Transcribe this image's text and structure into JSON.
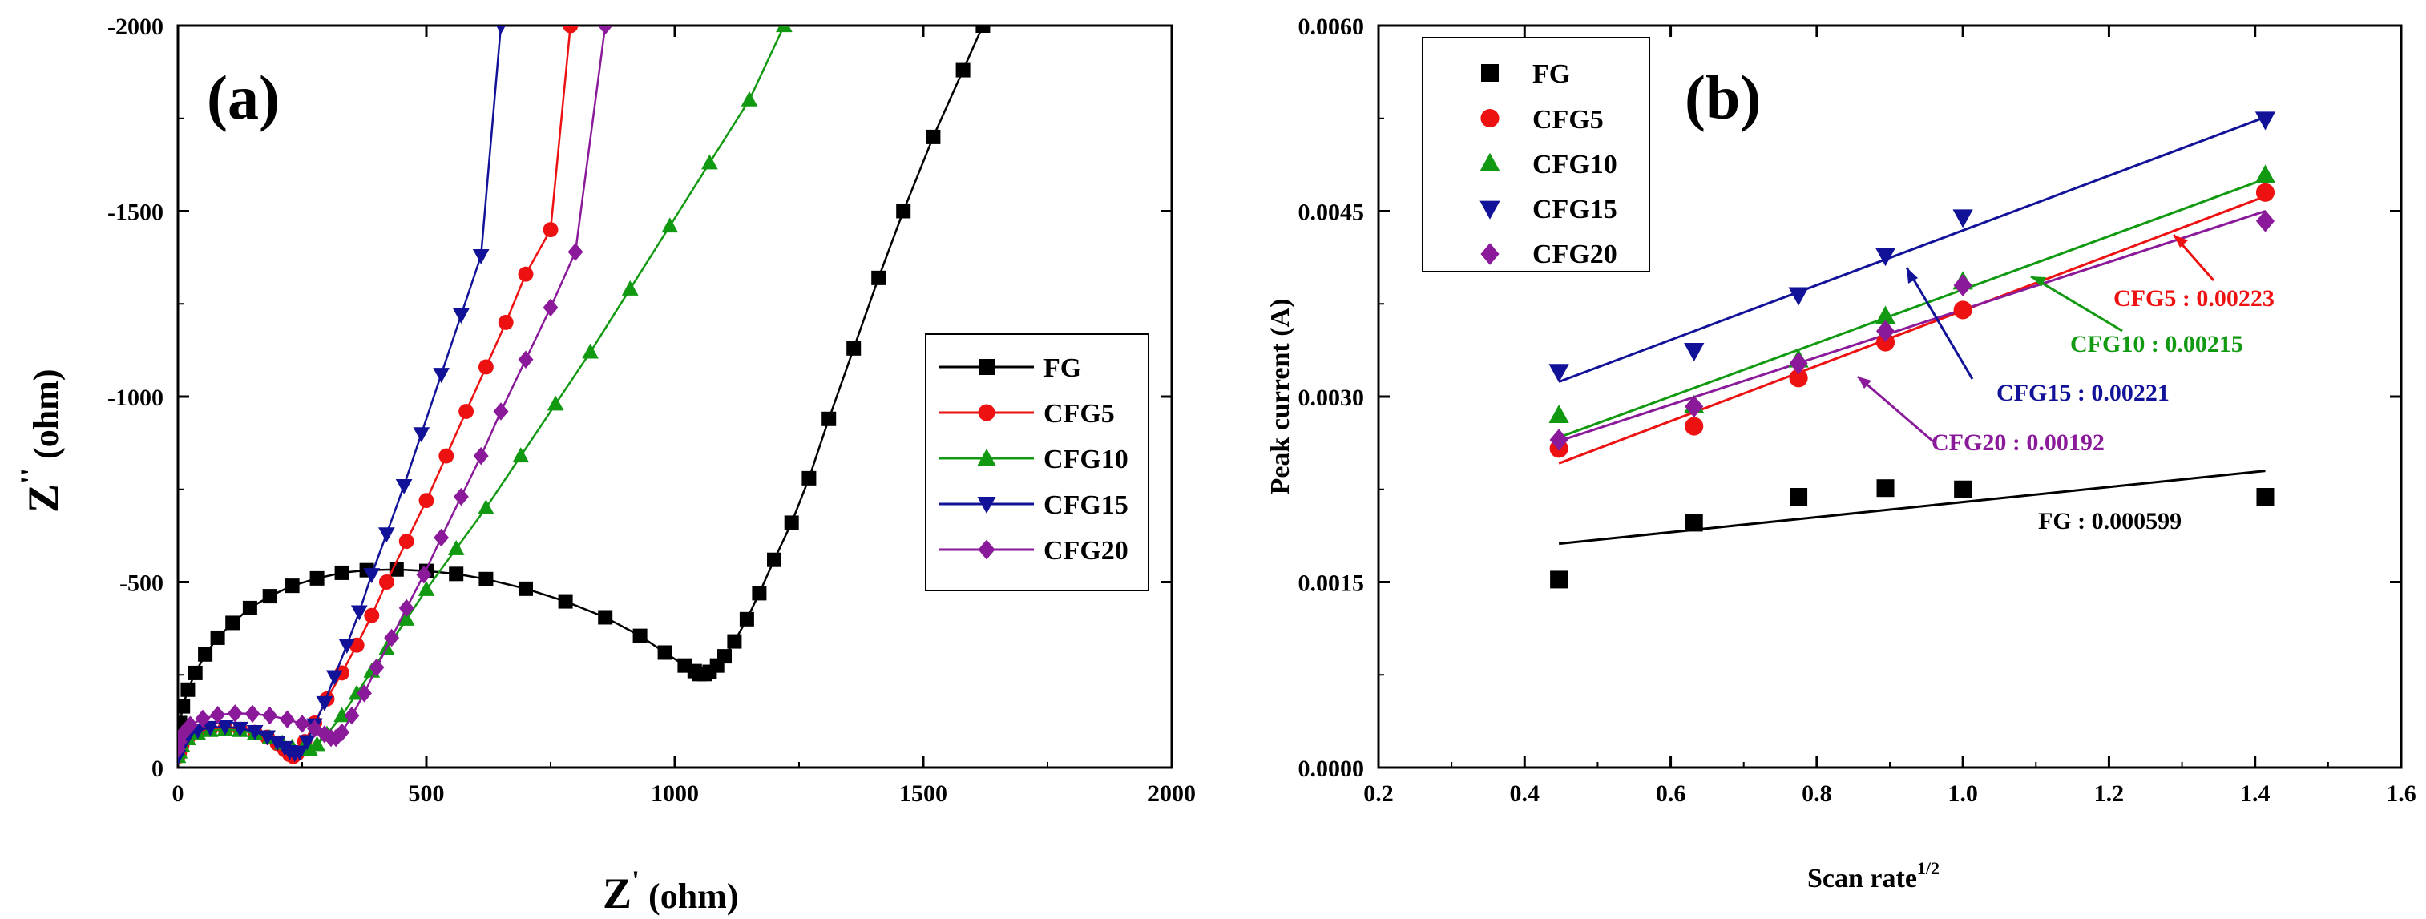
{
  "colors": {
    "FG": "#000000",
    "CFG5": "#ee1111",
    "CFG10": "#119911",
    "CFG15": "#121299",
    "CFG20": "#8a1a9a"
  },
  "chart_data": [
    {
      "panel_label": "(a)",
      "type": "line",
      "xlabel_main": "Z",
      "xlabel_prime": "'",
      "xlabel_unit": " (ohm)",
      "ylabel_main": "Z",
      "ylabel_prime": "''",
      "ylabel_unit": " (ohm)",
      "xlim": [
        0,
        2000
      ],
      "ylim": [
        0,
        -2000
      ],
      "xticks": [
        0,
        500,
        1000,
        1500,
        2000
      ],
      "yticks": [
        0,
        -500,
        -1000,
        -1500,
        -2000
      ],
      "xtick_labels": [
        "0",
        "500",
        "1000",
        "1500",
        "2000"
      ],
      "ytick_labels": [
        "0",
        "-500",
        "-1000",
        "-1500",
        "-2000"
      ],
      "legend_position": "center-right",
      "series": [
        {
          "name": "FG",
          "marker": "square",
          "x": [
            0,
            4,
            10,
            20,
            35,
            55,
            80,
            110,
            145,
            185,
            230,
            280,
            330,
            380,
            440,
            500,
            560,
            620,
            700,
            780,
            860,
            930,
            980,
            1020,
            1040,
            1050,
            1060,
            1070,
            1085,
            1100,
            1120,
            1145,
            1170,
            1200,
            1235,
            1270,
            1310,
            1360,
            1410,
            1460,
            1520,
            1580,
            1620
          ],
          "y": [
            -80,
            -120,
            -165,
            -210,
            -255,
            -305,
            -350,
            -390,
            -430,
            -462,
            -490,
            -510,
            -525,
            -532,
            -534,
            -530,
            -522,
            -508,
            -482,
            -448,
            -405,
            -355,
            -310,
            -275,
            -260,
            -252,
            -252,
            -258,
            -275,
            -300,
            -340,
            -400,
            -470,
            -560,
            -660,
            -780,
            -940,
            -1130,
            -1320,
            -1500,
            -1700,
            -1880,
            -2000
          ]
        },
        {
          "name": "CFG5",
          "marker": "circle",
          "x": [
            0,
            3,
            8,
            20,
            40,
            65,
            95,
            125,
            155,
            180,
            200,
            215,
            225,
            232,
            240,
            255,
            275,
            300,
            330,
            360,
            390,
            420,
            460,
            500,
            540,
            580,
            620,
            660,
            700,
            750,
            790
          ],
          "y": [
            -30,
            -40,
            -60,
            -80,
            -95,
            -103,
            -106,
            -103,
            -95,
            -82,
            -65,
            -48,
            -35,
            -30,
            -38,
            -70,
            -120,
            -185,
            -255,
            -330,
            -410,
            -500,
            -610,
            -720,
            -840,
            -960,
            -1080,
            -1200,
            -1330,
            -1450,
            -2000
          ]
        },
        {
          "name": "CFG10",
          "marker": "triangle-up",
          "x": [
            0,
            3,
            8,
            20,
            40,
            65,
            95,
            125,
            155,
            185,
            210,
            230,
            250,
            265,
            280,
            300,
            330,
            360,
            390,
            420,
            460,
            500,
            560,
            620,
            690,
            760,
            830,
            910,
            990,
            1070,
            1150,
            1220
          ],
          "y": [
            -30,
            -42,
            -60,
            -78,
            -92,
            -100,
            -103,
            -100,
            -92,
            -80,
            -66,
            -55,
            -48,
            -50,
            -62,
            -90,
            -140,
            -200,
            -260,
            -320,
            -400,
            -480,
            -590,
            -700,
            -840,
            -980,
            -1120,
            -1290,
            -1460,
            -1630,
            -1800,
            -2000
          ]
        },
        {
          "name": "CFG15",
          "marker": "triangle-down",
          "x": [
            0,
            3,
            8,
            20,
            40,
            65,
            95,
            125,
            155,
            180,
            200,
            215,
            225,
            235,
            245,
            260,
            275,
            295,
            315,
            340,
            365,
            390,
            420,
            455,
            490,
            530,
            570,
            610,
            650
          ],
          "y": [
            -30,
            -45,
            -65,
            -85,
            -100,
            -108,
            -110,
            -106,
            -97,
            -83,
            -68,
            -54,
            -43,
            -38,
            -42,
            -70,
            -115,
            -175,
            -245,
            -330,
            -420,
            -520,
            -630,
            -760,
            -900,
            -1060,
            -1220,
            -1380,
            -2000
          ]
        },
        {
          "name": "CFG20",
          "marker": "diamond",
          "x": [
            0,
            4,
            10,
            25,
            50,
            80,
            115,
            150,
            185,
            220,
            250,
            275,
            295,
            308,
            318,
            330,
            350,
            375,
            400,
            430,
            460,
            495,
            530,
            570,
            610,
            650,
            700,
            750,
            800,
            860
          ],
          "y": [
            -50,
            -70,
            -92,
            -115,
            -132,
            -142,
            -146,
            -145,
            -140,
            -130,
            -118,
            -105,
            -90,
            -80,
            -80,
            -95,
            -140,
            -200,
            -270,
            -350,
            -430,
            -520,
            -620,
            -730,
            -840,
            -960,
            -1100,
            -1240,
            -1390,
            -2000
          ]
        }
      ]
    },
    {
      "panel_label": "(b)",
      "type": "scatter",
      "xlabel": "Scan rate",
      "xlabel_sup": "1/2",
      "ylabel": "Peak current (A)",
      "xlim": [
        0.2,
        1.6
      ],
      "ylim": [
        0.0,
        0.006
      ],
      "xticks": [
        0.2,
        0.4,
        0.6,
        0.8,
        1.0,
        1.2,
        1.4,
        1.6
      ],
      "yticks": [
        0.0,
        0.0015,
        0.003,
        0.0045,
        0.006
      ],
      "xtick_labels": [
        "0.2",
        "0.4",
        "0.6",
        "0.8",
        "1.0",
        "1.2",
        "1.4",
        "1.6"
      ],
      "ytick_labels": [
        "0.0000",
        "0.0015",
        "0.0030",
        "0.0045",
        "0.0060"
      ],
      "legend_position": "top-left",
      "x": [
        0.447,
        0.632,
        0.775,
        0.894,
        1.0,
        1.414
      ],
      "series": [
        {
          "name": "FG",
          "marker": "square",
          "values": [
            0.00152,
            0.00198,
            0.00219,
            0.00226,
            0.00225,
            0.00219
          ],
          "fit_start": 0.00181,
          "fit_end": 0.0024,
          "slope_label": "FG : 0.000599"
        },
        {
          "name": "CFG5",
          "marker": "circle",
          "values": [
            0.00258,
            0.00276,
            0.00315,
            0.00344,
            0.0037,
            0.00465
          ],
          "fit_start": 0.00246,
          "fit_end": 0.00462,
          "slope_label": "CFG5 : 0.00223"
        },
        {
          "name": "CFG10",
          "marker": "triangle-up",
          "values": [
            0.00285,
            0.00293,
            0.0033,
            0.00365,
            0.00393,
            0.00479
          ],
          "fit_start": 0.00267,
          "fit_end": 0.00476,
          "slope_label": "CFG10 : 0.00215"
        },
        {
          "name": "CFG15",
          "marker": "triangle-down",
          "values": [
            0.0032,
            0.00337,
            0.00382,
            0.00414,
            0.00445,
            0.00524
          ],
          "fit_start": 0.00312,
          "fit_end": 0.00526,
          "slope_label": "CFG15 : 0.00221"
        },
        {
          "name": "CFG20",
          "marker": "diamond",
          "values": [
            0.00265,
            0.00292,
            0.00327,
            0.00353,
            0.0039,
            0.00442
          ],
          "fit_start": 0.00264,
          "fit_end": 0.0045,
          "slope_label": "CFG20 : 0.00192"
        }
      ]
    }
  ]
}
